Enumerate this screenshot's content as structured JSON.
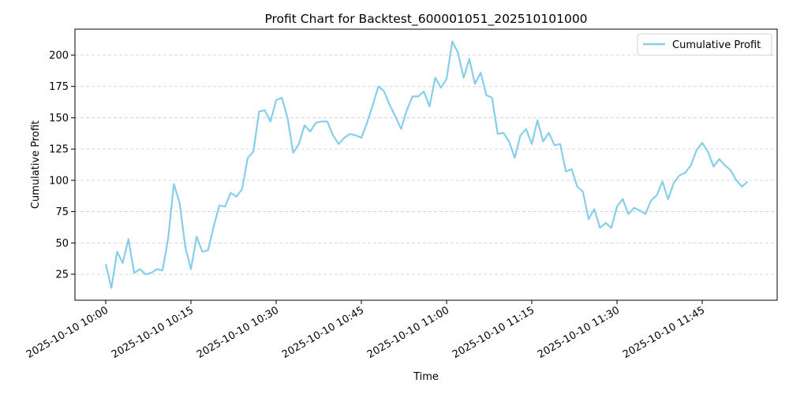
{
  "chart_data": {
    "type": "line",
    "title": "Profit Chart for Backtest_600001051_202510101000",
    "xlabel": "Time",
    "ylabel": "Cumulative Profit",
    "ylim": [
      4,
      221
    ],
    "yticks": [
      25,
      50,
      75,
      100,
      125,
      150,
      175,
      200
    ],
    "xticks": [
      "2025-10-10 10:00",
      "2025-10-10 10:15",
      "2025-10-10 10:30",
      "2025-10-10 10:45",
      "2025-10-10 11:00",
      "2025-10-10 11:15",
      "2025-10-10 11:30",
      "2025-10-10 11:45"
    ],
    "grid": "y-dashed",
    "legend_position": "upper right",
    "series": [
      {
        "name": "Cumulative Profit",
        "color": "#87CEEB",
        "x_start": "2025-10-10 10:00",
        "x_step_minutes": 1,
        "values": [
          33,
          14,
          43,
          34,
          53,
          26,
          29,
          25,
          26,
          29,
          28,
          54,
          97,
          82,
          47,
          29,
          55,
          43,
          44,
          63,
          80,
          79,
          90,
          87,
          93,
          118,
          123,
          155,
          156,
          147,
          164,
          166,
          150,
          122,
          129,
          144,
          139,
          146,
          147,
          147,
          136,
          129,
          134,
          137,
          136,
          134,
          146,
          160,
          175,
          171,
          160,
          151,
          141,
          156,
          167,
          167,
          171,
          159,
          182,
          174,
          181,
          211,
          202,
          182,
          197,
          177,
          186,
          168,
          166,
          137,
          138,
          131,
          118,
          136,
          141,
          129,
          148,
          131,
          138,
          128,
          129,
          107,
          109,
          95,
          91,
          69,
          77,
          62,
          66,
          62,
          79,
          85,
          73,
          78,
          76,
          73,
          84,
          88,
          99,
          85,
          98,
          104,
          106,
          112,
          124,
          130,
          123,
          111,
          117,
          112,
          108,
          100,
          95,
          99
        ]
      }
    ]
  },
  "colors": {
    "line": "#87CEEB",
    "grid": "#cccccc",
    "axis": "#000000"
  }
}
